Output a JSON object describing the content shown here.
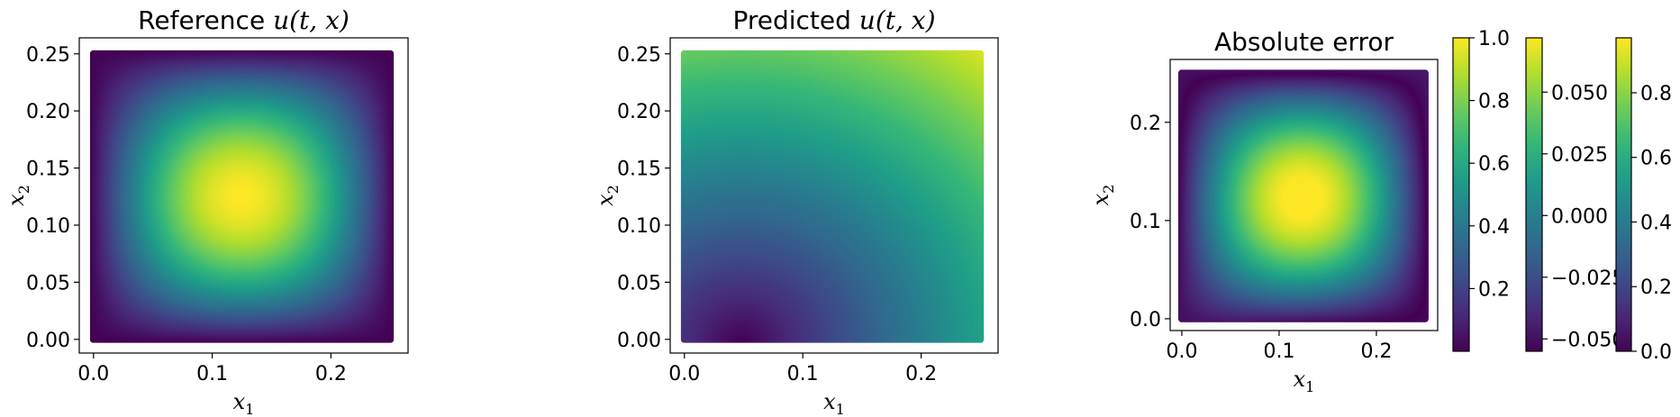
{
  "colormap": "viridis",
  "colors": [
    "#440154",
    "#3b528b",
    "#21918c",
    "#5ec962",
    "#fde725"
  ],
  "chart_data": [
    {
      "type": "heatmap",
      "title_text": "Reference ",
      "title_math": "u(t, x)",
      "xlabel": "x",
      "xlabel_sub": "1",
      "ylabel": "x",
      "ylabel_sub": "2",
      "xlim": [
        -0.012,
        0.265
      ],
      "ylim": [
        -0.012,
        0.264
      ],
      "x_range": [
        0.0,
        0.25
      ],
      "y_range": [
        0.0,
        0.25
      ],
      "xticks": [
        0.0,
        0.1,
        0.2
      ],
      "xtick_labels": [
        "0.0",
        "0.1",
        "0.2"
      ],
      "yticks": [
        0.0,
        0.05,
        0.1,
        0.15,
        0.2,
        0.25
      ],
      "ytick_labels": [
        "0.00",
        "0.05",
        "0.10",
        "0.15",
        "0.20",
        "0.25"
      ],
      "field": "sin(4πx1)·sin(4πx2), max 1.0 at center",
      "vmin": 0.0,
      "vmax": 1.0
    },
    {
      "type": "heatmap",
      "title_text": "Predicted ",
      "title_math": "u(t, x)",
      "xlabel": "x",
      "xlabel_sub": "1",
      "ylabel": "x",
      "ylabel_sub": "2",
      "xlim": [
        -0.012,
        0.265
      ],
      "ylim": [
        -0.012,
        0.264
      ],
      "x_range": [
        0.0,
        0.25
      ],
      "y_range": [
        0.0,
        0.25
      ],
      "xticks": [
        0.0,
        0.1,
        0.2
      ],
      "xtick_labels": [
        "0.0",
        "0.1",
        "0.2"
      ],
      "yticks": [
        0.0,
        0.05,
        0.1,
        0.15,
        0.2,
        0.25
      ],
      "ytick_labels": [
        "0.00",
        "0.05",
        "0.10",
        "0.15",
        "0.20",
        "0.25"
      ],
      "field": "smooth field, min near (0.05, 0.0), max at (0.25, 0.25)",
      "vmin": -0.055,
      "vmax": 0.072
    },
    {
      "type": "heatmap",
      "title_text": "Absolute error",
      "title_math": "",
      "xlabel": "x",
      "xlabel_sub": "1",
      "ylabel": "x",
      "ylabel_sub": "2",
      "xlim": [
        -0.012,
        0.263
      ],
      "ylim": [
        -0.012,
        0.264
      ],
      "x_range": [
        0.0,
        0.25
      ],
      "y_range": [
        0.0,
        0.25
      ],
      "xticks": [
        0.0,
        0.1,
        0.2
      ],
      "xtick_labels": [
        "0.0",
        "0.1",
        "0.2"
      ],
      "yticks": [
        0.0,
        0.1,
        0.2
      ],
      "ytick_labels": [
        "0.0",
        "0.1",
        "0.2"
      ],
      "field": "abs(reference − predicted), max ~0.97 at center",
      "vmin": 0.0,
      "vmax": 0.97
    }
  ],
  "colorbars": [
    {
      "vmin": 0.0,
      "vmax": 1.0,
      "ticks": [
        0.2,
        0.4,
        0.6,
        0.8,
        1.0
      ],
      "tick_labels": [
        "0.2",
        "0.4",
        "0.6",
        "0.8",
        "1.0"
      ],
      "range": [
        0.0,
        1.0
      ]
    },
    {
      "vmin": -0.055,
      "vmax": 0.072,
      "ticks": [
        -0.05,
        -0.025,
        0.0,
        0.025,
        0.05
      ],
      "tick_labels": [
        "−0.050",
        "−0.025",
        "0.000",
        "0.025",
        "0.050"
      ],
      "range": [
        -0.055,
        0.072
      ]
    },
    {
      "vmin": 0.0,
      "vmax": 0.97,
      "ticks": [
        0.0,
        0.2,
        0.4,
        0.6,
        0.8
      ],
      "tick_labels": [
        "0.0",
        "0.2",
        "0.4",
        "0.6",
        "0.8"
      ],
      "range": [
        0.0,
        0.97
      ]
    }
  ]
}
